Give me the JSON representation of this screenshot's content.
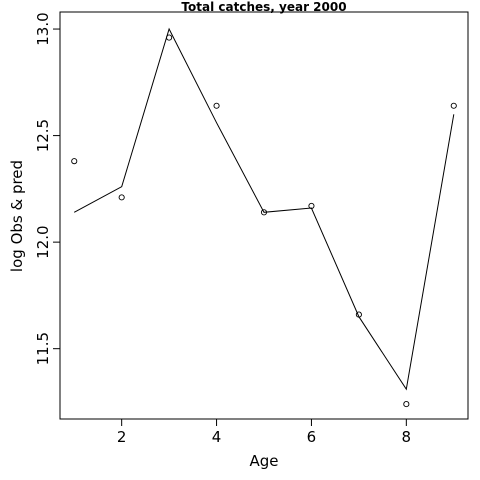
{
  "chart_data": {
    "type": "line",
    "title": "Total catches, year 2000",
    "xlabel": "Age",
    "ylabel": "log Obs & pred",
    "xlim": [
      0.7,
      9.3
    ],
    "ylim": [
      11.17,
      13.08
    ],
    "x_ticks": [
      2,
      4,
      6,
      8
    ],
    "y_ticks": [
      11.5,
      12.0,
      12.5,
      13.0
    ],
    "grid": false,
    "series": [
      {
        "style": "points",
        "x": [
          1,
          2,
          3,
          4,
          5,
          6,
          7,
          8,
          9
        ],
        "y": [
          12.38,
          12.21,
          12.96,
          12.64,
          12.14,
          12.17,
          11.66,
          11.24,
          12.64
        ]
      },
      {
        "style": "line",
        "x": [
          1,
          2,
          3,
          4,
          5,
          6,
          7,
          8,
          9
        ],
        "y": [
          12.14,
          12.26,
          13.0,
          12.56,
          12.14,
          12.16,
          11.65,
          11.31,
          12.6
        ]
      }
    ]
  }
}
